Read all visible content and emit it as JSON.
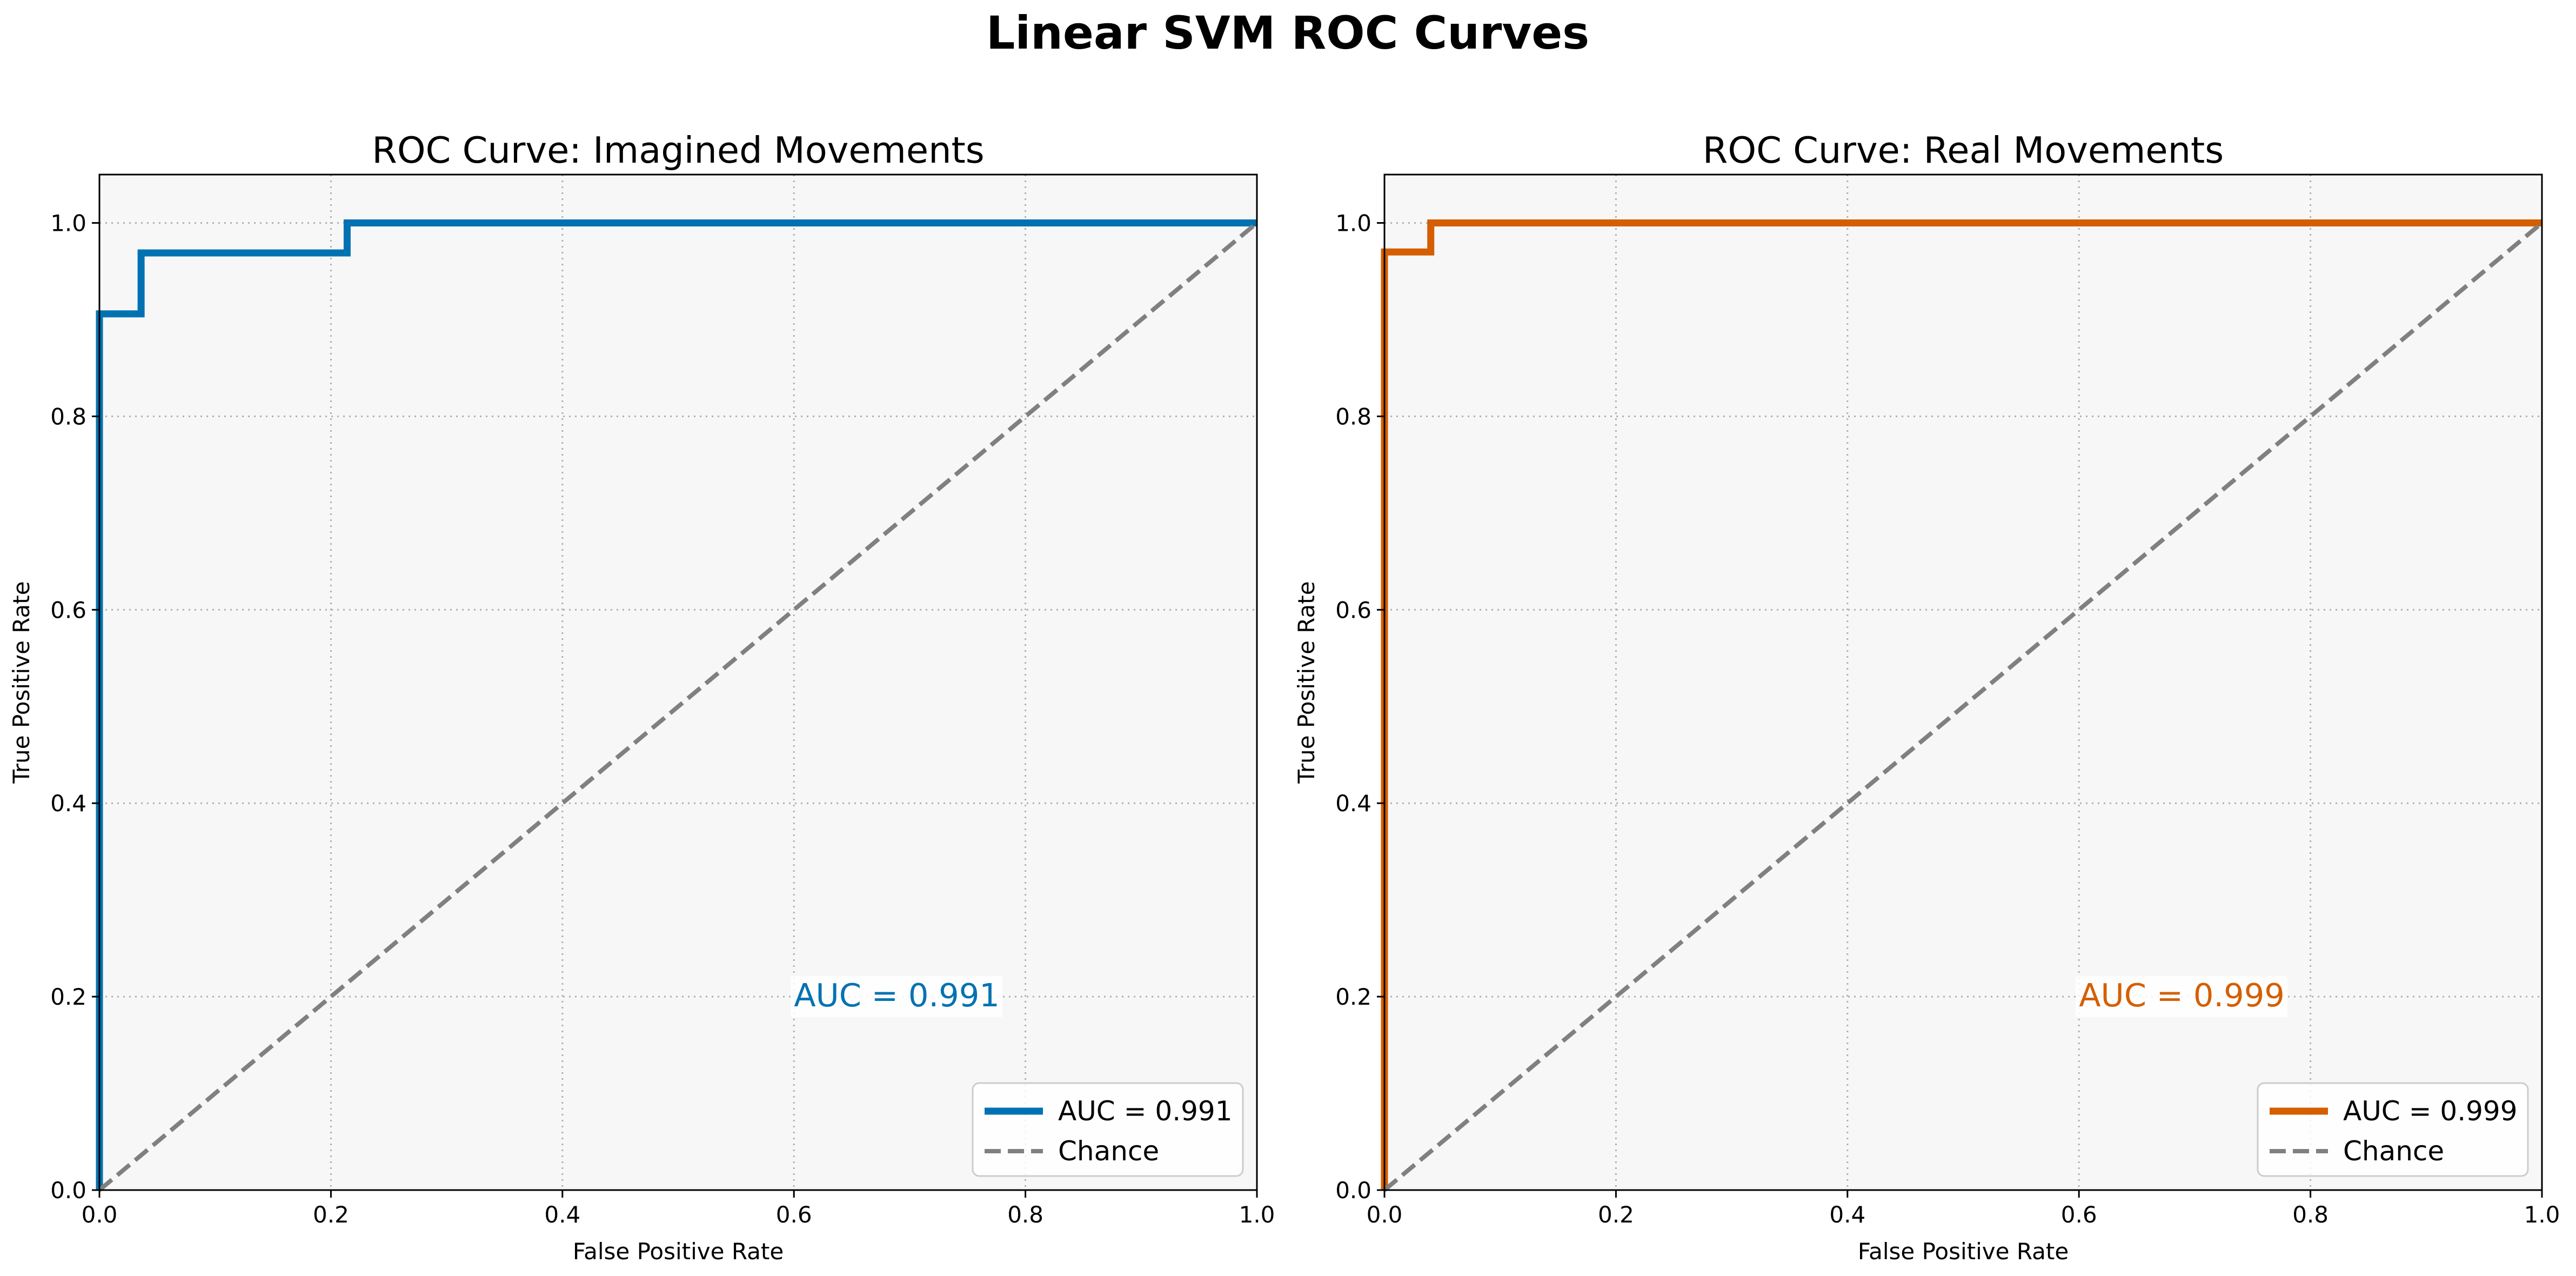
{
  "figure": {
    "title": "Linear SVM ROC Curves"
  },
  "chart_data": [
    {
      "type": "line",
      "title": "ROC Curve: Imagined Movements",
      "xlabel": "False Positive Rate",
      "ylabel": "True Positive Rate",
      "xlim": [
        0.0,
        1.0
      ],
      "ylim": [
        0.0,
        1.05
      ],
      "xticks": [
        "0.0",
        "0.2",
        "0.4",
        "0.6",
        "0.8",
        "1.0"
      ],
      "yticks": [
        "0.0",
        "0.2",
        "0.4",
        "0.6",
        "0.8",
        "1.0"
      ],
      "grid": true,
      "legend_position": "lower-right",
      "annotation": "AUC = 0.991",
      "series": [
        {
          "name": "AUC = 0.991",
          "color": "#0072b2",
          "style": "solid",
          "x": [
            0.0,
            0.0,
            0.036,
            0.036,
            0.214,
            0.214,
            1.0
          ],
          "y": [
            0.0,
            0.906,
            0.906,
            0.969,
            0.969,
            1.0,
            1.0
          ]
        },
        {
          "name": "Chance",
          "color": "#808080",
          "style": "dashed",
          "x": [
            0.0,
            1.0
          ],
          "y": [
            0.0,
            1.0
          ]
        }
      ]
    },
    {
      "type": "line",
      "title": "ROC Curve: Real Movements",
      "xlabel": "False Positive Rate",
      "ylabel": "True Positive Rate",
      "xlim": [
        0.0,
        1.0
      ],
      "ylim": [
        0.0,
        1.05
      ],
      "xticks": [
        "0.0",
        "0.2",
        "0.4",
        "0.6",
        "0.8",
        "1.0"
      ],
      "yticks": [
        "0.0",
        "0.2",
        "0.4",
        "0.6",
        "0.8",
        "1.0"
      ],
      "grid": true,
      "legend_position": "lower-right",
      "annotation": "AUC = 0.999",
      "series": [
        {
          "name": "AUC = 0.999",
          "color": "#d55e00",
          "style": "solid",
          "x": [
            0.0,
            0.0,
            0.04,
            0.04,
            1.0
          ],
          "y": [
            0.0,
            0.97,
            0.97,
            1.0,
            1.0
          ]
        },
        {
          "name": "Chance",
          "color": "#808080",
          "style": "dashed",
          "x": [
            0.0,
            1.0
          ],
          "y": [
            0.0,
            1.0
          ]
        }
      ]
    }
  ]
}
